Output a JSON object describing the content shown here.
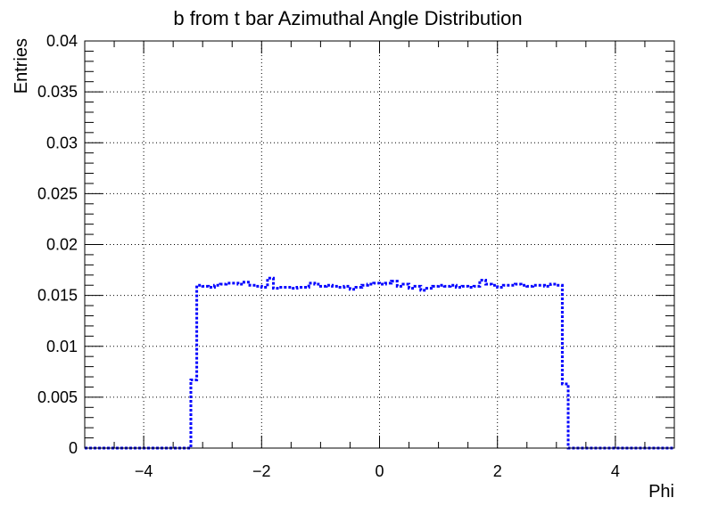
{
  "chart_data": {
    "type": "line",
    "title": "b from t bar Azimuthal Angle Distribution",
    "xlabel": "Phi",
    "ylabel": "Entries",
    "xlim": [
      -5,
      5
    ],
    "ylim": [
      0,
      0.04
    ],
    "x_ticks": [
      -4,
      -2,
      0,
      2,
      4
    ],
    "x_tick_labels": [
      "−4",
      "−2",
      "0",
      "2",
      "4"
    ],
    "y_ticks": [
      0,
      0.005,
      0.01,
      0.015,
      0.02,
      0.025,
      0.03,
      0.035,
      0.04
    ],
    "y_tick_labels": [
      "0",
      "0.005",
      "0.01",
      "0.015",
      "0.02",
      "0.025",
      "0.03",
      "0.035",
      "0.04"
    ],
    "grid": true,
    "line_color": "#0000ff",
    "line_style": "dotted-step",
    "bin_edges": [
      -5.0,
      -3.2,
      -3.1,
      -3.0,
      -2.9,
      -2.8,
      -2.7,
      -2.6,
      -2.5,
      -2.4,
      -2.3,
      -2.2,
      -2.1,
      -2.0,
      -1.9,
      -1.8,
      -1.7,
      -1.6,
      -1.5,
      -1.4,
      -1.3,
      -1.2,
      -1.1,
      -1.0,
      -0.9,
      -0.8,
      -0.7,
      -0.6,
      -0.5,
      -0.4,
      -0.3,
      -0.2,
      -0.1,
      0.0,
      0.1,
      0.2,
      0.3,
      0.4,
      0.5,
      0.6,
      0.7,
      0.8,
      0.9,
      1.0,
      1.1,
      1.2,
      1.3,
      1.4,
      1.5,
      1.6,
      1.7,
      1.8,
      1.9,
      2.0,
      2.1,
      2.2,
      2.3,
      2.4,
      2.5,
      2.6,
      2.7,
      2.8,
      2.9,
      3.0,
      3.1,
      3.2,
      5.0
    ],
    "values": [
      0,
      0.0067,
      0.016,
      0.0159,
      0.0158,
      0.016,
      0.0161,
      0.0162,
      0.0162,
      0.0161,
      0.0163,
      0.016,
      0.0159,
      0.0158,
      0.0167,
      0.0157,
      0.0158,
      0.0158,
      0.0157,
      0.0158,
      0.0158,
      0.0162,
      0.0161,
      0.0159,
      0.016,
      0.0159,
      0.0158,
      0.0159,
      0.0156,
      0.0158,
      0.016,
      0.0161,
      0.0162,
      0.0161,
      0.0162,
      0.0164,
      0.0159,
      0.0161,
      0.0157,
      0.0159,
      0.0155,
      0.0157,
      0.0159,
      0.016,
      0.0159,
      0.016,
      0.0158,
      0.0159,
      0.0158,
      0.0159,
      0.0165,
      0.0161,
      0.016,
      0.0158,
      0.016,
      0.016,
      0.0161,
      0.016,
      0.0159,
      0.016,
      0.016,
      0.0159,
      0.0161,
      0.016,
      0.0063,
      0
    ]
  }
}
